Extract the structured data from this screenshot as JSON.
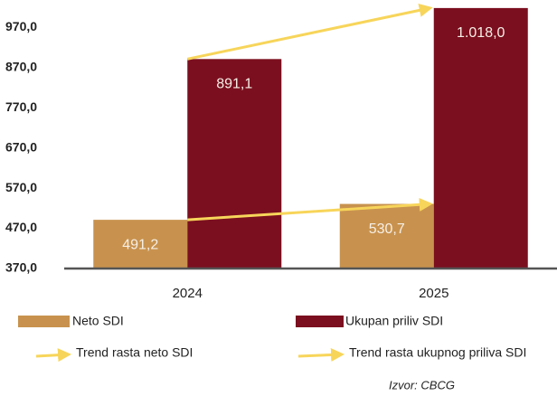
{
  "chart_data": {
    "type": "bar",
    "categories": [
      "2024",
      "2025"
    ],
    "series": [
      {
        "name": "Neto SDI",
        "color": "#c8924e",
        "values": [
          491.2,
          530.7
        ],
        "value_labels": [
          "491,2",
          "530,7"
        ]
      },
      {
        "name": "Ukupan priliv SDI",
        "color": "#7b0f1f",
        "values": [
          891.1,
          1018.0
        ],
        "value_labels": [
          "891,1",
          "1.018,0"
        ]
      }
    ],
    "trends": [
      {
        "name": "Trend rasta neto SDI",
        "color": "#f7d55a"
      },
      {
        "name": "Trend rasta ukupnog priliva SDI",
        "color": "#f7d55a"
      }
    ],
    "ylim": [
      370,
      1020
    ],
    "yticks": [
      {
        "value": 370,
        "label": "370,0"
      },
      {
        "value": 470,
        "label": "470,0"
      },
      {
        "value": 570,
        "label": "570,0"
      },
      {
        "value": 670,
        "label": "670,0"
      },
      {
        "value": 770,
        "label": "770,0"
      },
      {
        "value": 870,
        "label": "870,0"
      },
      {
        "value": 970,
        "label": "970,0"
      }
    ],
    "source": "Izvor: CBCG"
  }
}
